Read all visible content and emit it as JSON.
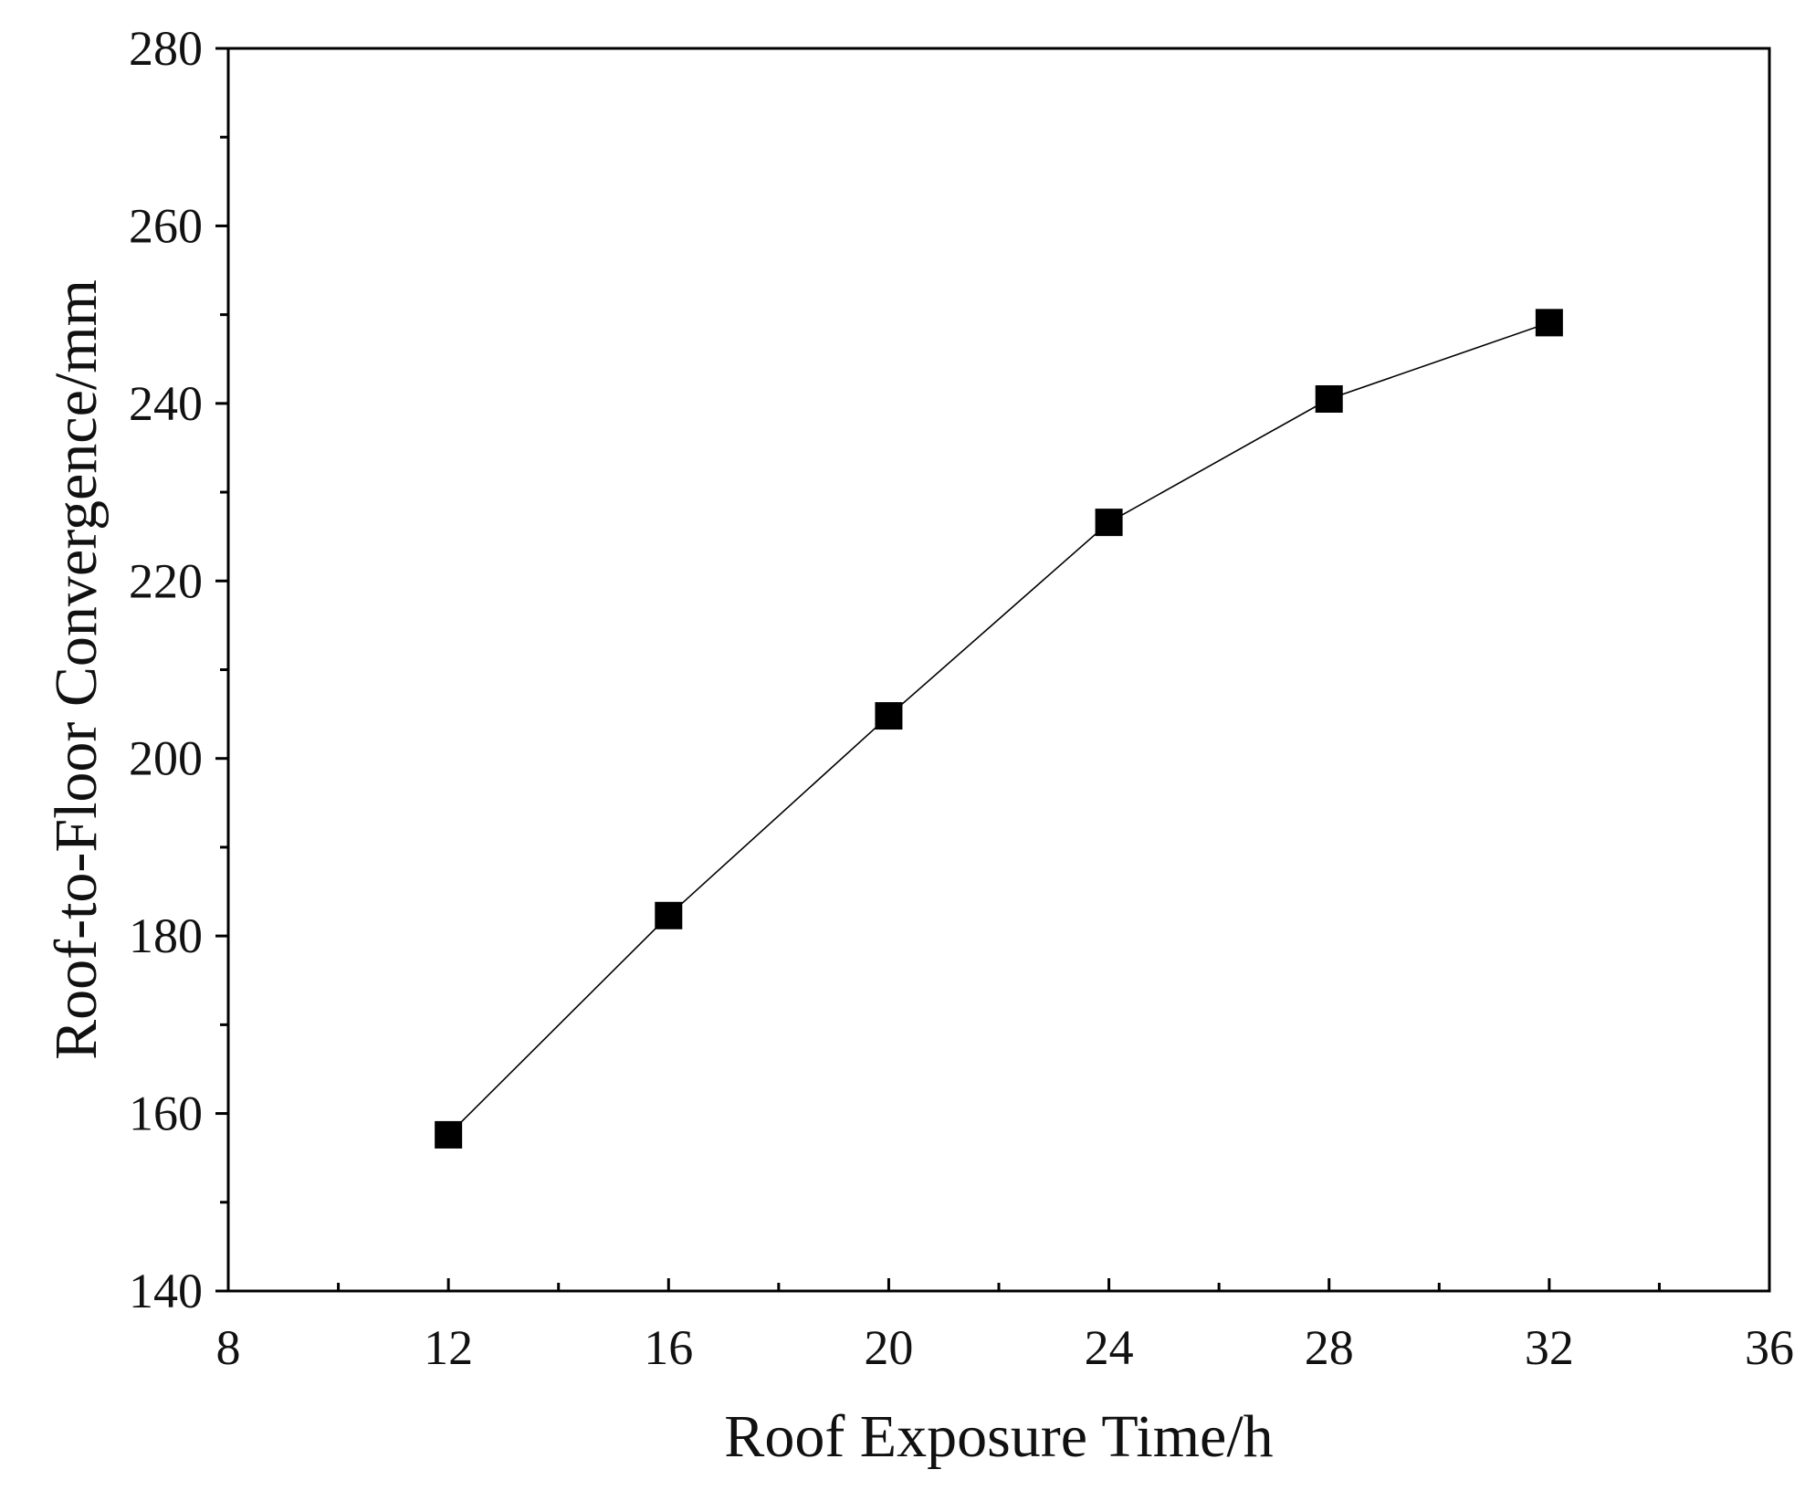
{
  "chart_data": {
    "type": "line",
    "title": "",
    "xlabel": "Roof Exposure Time/h",
    "ylabel": "Roof-to-Floor Convergence/mm",
    "xlim": [
      8,
      36
    ],
    "ylim": [
      140,
      280
    ],
    "x_major_ticks": [
      8,
      12,
      16,
      20,
      24,
      28,
      32,
      36
    ],
    "x_minor_ticks": [
      10,
      14,
      18,
      22,
      26,
      30,
      34
    ],
    "y_major_ticks": [
      140,
      160,
      180,
      200,
      220,
      240,
      260,
      280
    ],
    "y_minor_ticks": [
      150,
      170,
      190,
      210,
      230,
      250,
      270
    ],
    "grid": false,
    "legend": "none",
    "series": [
      {
        "marker": "square",
        "color": "#000000",
        "x": [
          12,
          16,
          20,
          24,
          28,
          32
        ],
        "y": [
          157.6,
          182.3,
          204.8,
          226.6,
          240.5,
          249.1
        ]
      }
    ]
  }
}
